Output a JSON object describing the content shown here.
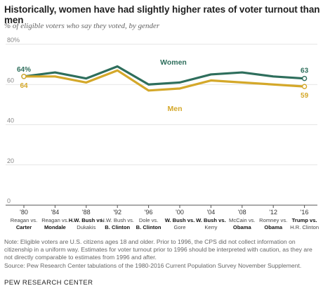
{
  "header": {
    "title": "Historically, women have had slightly higher rates of voter turnout than men",
    "subtitle": "% of eligible voters who say they voted, by gender"
  },
  "colors": {
    "women": "#2e6e5c",
    "men": "#d4a82a",
    "grid": "#dddddd",
    "axis": "#888888"
  },
  "chart_data": {
    "type": "line",
    "title": "Historically, women have had slightly higher rates of voter turnout than men",
    "subtitle": "% of eligible voters who say they voted, by gender",
    "y_tick_labels": [
      "80%",
      "60",
      "40",
      "20",
      "0"
    ],
    "y_ticks": [
      80,
      60,
      40,
      20,
      0
    ],
    "ylim": [
      0,
      80
    ],
    "grid": true,
    "categories": [
      "'80",
      "'84",
      "'88",
      "'92",
      "'96",
      "'00",
      "'04",
      "'08",
      "'12",
      "'16"
    ],
    "x_sublabels": [
      [
        "Reagan vs.",
        "Carter"
      ],
      [
        "Reagan vs.",
        "Mondale"
      ],
      [
        "H.W. Bush vs.",
        "Dukakis"
      ],
      [
        "H.W. Bush vs.",
        "B. Clinton"
      ],
      [
        "Dole vs.",
        "B. Clinton"
      ],
      [
        "W. Bush vs.",
        "Gore"
      ],
      [
        "W. Bush vs.",
        "Kerry"
      ],
      [
        "McCain vs.",
        "Obama"
      ],
      [
        "Romney vs.",
        "Obama"
      ],
      [
        "Trump vs.",
        "H.R. Clinton"
      ]
    ],
    "x_bold_winners": [
      1,
      1,
      0,
      1,
      1,
      0,
      0,
      1,
      1,
      0
    ],
    "series": [
      {
        "name": "Women",
        "values": [
          64,
          66,
          63,
          69,
          60,
          61,
          65,
          66,
          64,
          63
        ]
      },
      {
        "name": "Men",
        "values": [
          64,
          64,
          61,
          67,
          57,
          58,
          62,
          61,
          60,
          59
        ]
      }
    ],
    "data_labels": {
      "Women": {
        "first": "64%",
        "last": "63"
      },
      "Men": {
        "first": "64",
        "last": "59"
      }
    }
  },
  "notes": {
    "note": "Note: Eligible voters are U.S. citizens ages 18 and older. Prior to 1996, the CPS did not collect information on citizenship in a uniform way. Estimates for voter turnout prior to 1996 should be interpreted with caution, as they are not directly comparable to estimates from 1996 and after.",
    "source": "Source: Pew Research Center tabulations of the 1980-2016 Current Population Survey November Supplement."
  },
  "brand": "PEW RESEARCH CENTER"
}
